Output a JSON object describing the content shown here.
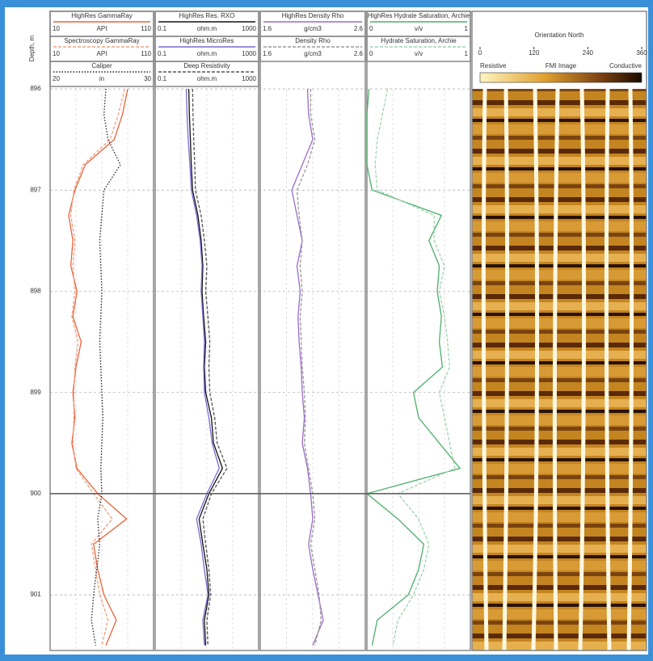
{
  "depth_label": "Depth, m",
  "chart_data": {
    "type": "well-log",
    "ylim": [
      896,
      901.55
    ],
    "yticks": [
      896,
      897,
      898,
      899,
      900,
      901
    ],
    "depth": [
      896,
      896.25,
      896.5,
      896.75,
      897,
      897.25,
      897.5,
      897.75,
      898,
      898.25,
      898.5,
      898.75,
      899,
      899.25,
      899.5,
      899.75,
      900,
      900.25,
      900.5,
      900.75,
      901,
      901.25,
      901.5
    ],
    "tracks": [
      {
        "log": false,
        "series": [
          {
            "name": "HighRes GammaRay",
            "unit": "API",
            "xlim": [
              10,
              110
            ],
            "color": "#e8643c",
            "dash": "solid",
            "values": [
              85,
              80,
              72,
              44,
              34,
              28,
              32,
              30,
              36,
              32,
              40,
              35,
              32,
              34,
              31,
              36,
              56,
              84,
              52,
              56,
              62,
              74,
              64
            ]
          },
          {
            "name": "Spectroscopy GammaRay",
            "unit": "API",
            "xlim": [
              10,
              110
            ],
            "color": "#f0a080",
            "dash": "dashed",
            "values": [
              82,
              76,
              68,
              42,
              33,
              30,
              34,
              32,
              34,
              31,
              37,
              34,
              33,
              33,
              32,
              35,
              52,
              70,
              50,
              54,
              58,
              66,
              60
            ]
          },
          {
            "name": "Caliper",
            "unit": "in",
            "xlim": [
              20,
              30
            ],
            "color": "#222222",
            "dash": "dotted",
            "values": [
              25.4,
              25.2,
              25.6,
              26.8,
              25.2,
              25.0,
              24.8,
              24.9,
              25.0,
              24.9,
              24.8,
              24.9,
              25.0,
              25.1,
              25.0,
              24.9,
              25.0,
              24.6,
              24.8,
              24.5,
              24.2,
              24.0,
              24.4
            ]
          }
        ]
      },
      {
        "log": true,
        "series": [
          {
            "name": "HighRes Res. RXO",
            "unit": "ohm.m",
            "xlim": [
              0.1,
              1000
            ],
            "color": "#111111",
            "dash": "solid",
            "values": [
              2.0,
              2.1,
              2.3,
              2.5,
              2.8,
              4.5,
              6,
              7,
              6.5,
              7.5,
              9,
              8,
              9,
              15,
              18,
              40,
              12,
              5,
              7,
              10,
              12,
              8,
              9
            ]
          },
          {
            "name": "HighRes MicroRes",
            "unit": "ohm.m",
            "xlim": [
              0.1,
              1000
            ],
            "color": "#7a6ad0",
            "dash": "solid",
            "values": [
              1.6,
              1.7,
              1.9,
              2.2,
              2.5,
              4,
              5.5,
              6.5,
              6,
              7,
              8,
              7.5,
              8,
              12,
              16,
              30,
              10,
              4,
              6,
              8,
              11,
              7,
              8
            ]
          },
          {
            "name": "Deep Resistivity",
            "unit": "ohm.m",
            "xlim": [
              0.1,
              1000
            ],
            "color": "#555555",
            "dash": "dashed",
            "values": [
              2.8,
              2.9,
              3.1,
              3.4,
              3.6,
              6,
              8,
              10,
              9,
              11,
              13,
              12,
              13,
              20,
              25,
              60,
              15,
              7,
              9,
              12,
              14,
              10,
              11
            ]
          }
        ]
      },
      {
        "log": false,
        "series": [
          {
            "name": "HighRes Density Rho",
            "unit": "g/cm3",
            "xlim": [
              1.6,
              2.6
            ],
            "color": "#9b6cc8",
            "dash": "solid",
            "values": [
              2.05,
              2.06,
              2.1,
              2.0,
              1.9,
              1.95,
              2.0,
              1.95,
              1.98,
              1.96,
              1.97,
              1.99,
              2.0,
              2.02,
              2.0,
              2.05,
              2.08,
              2.1,
              2.06,
              2.1,
              2.15,
              2.2,
              2.1
            ]
          },
          {
            "name": "Density Rho",
            "unit": "g/cm3",
            "xlim": [
              1.6,
              2.6
            ],
            "color": "#999999",
            "dash": "dashed",
            "values": [
              2.08,
              2.08,
              2.12,
              2.05,
              1.95,
              1.97,
              2.0,
              1.98,
              2.0,
              1.98,
              1.99,
              2.0,
              2.02,
              2.03,
              2.02,
              2.06,
              2.1,
              2.12,
              2.08,
              2.12,
              2.16,
              2.18,
              2.12
            ]
          }
        ]
      },
      {
        "log": false,
        "series": [
          {
            "name": "HighRes Hydrate Saturation, Archie",
            "unit": "v/v",
            "xlim": [
              0,
              1
            ],
            "color": "#4caf6a",
            "dash": "solid",
            "values": [
              0.02,
              0,
              0,
              0,
              0.05,
              0.72,
              0.6,
              0.7,
              0.68,
              0.72,
              0.7,
              0.73,
              0.45,
              0.5,
              0.7,
              0.9,
              0,
              0.3,
              0.55,
              0.5,
              0.4,
              0.1,
              0.05
            ]
          },
          {
            "name": "Hydrate Saturation, Archie",
            "unit": "v/v",
            "xlim": [
              0,
              1
            ],
            "color": "#9fd3ae",
            "dash": "dashed",
            "values": [
              0.2,
              0.15,
              0.1,
              0.08,
              0.1,
              0.65,
              0.65,
              0.75,
              0.7,
              0.75,
              0.78,
              0.8,
              0.7,
              0.75,
              0.8,
              0.85,
              0.3,
              0.5,
              0.6,
              0.55,
              0.45,
              0.3,
              0.25
            ]
          }
        ]
      }
    ],
    "image": {
      "title": "Orientation North",
      "xlim": [
        0,
        360
      ],
      "xticks": [
        0,
        120,
        240,
        360
      ],
      "scale_label": "FMI Image",
      "scale_min": "Resistive",
      "scale_max": "Conductive"
    }
  }
}
